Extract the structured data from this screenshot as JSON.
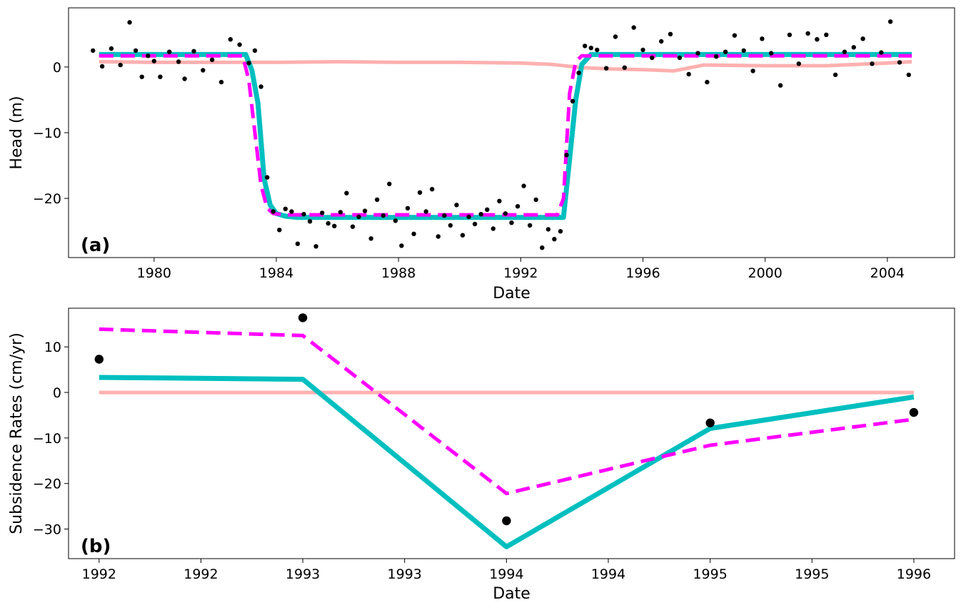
{
  "colors": {
    "pink": "#ffb0b0",
    "cyan": "#00bfbf",
    "magenta": "#ff00ff",
    "black": "#000000"
  },
  "chart_data": [
    {
      "type": "line",
      "panel_label": "(a)",
      "xlabel": "Date",
      "ylabel": "Head (m)",
      "xlim": [
        1977.2,
        2006.2
      ],
      "ylim": [
        -29,
        9
      ],
      "xticks": [
        1980,
        1984,
        1988,
        1992,
        1996,
        2000,
        2004
      ],
      "xtick_labels": [
        "1980",
        "1984",
        "1988",
        "1992",
        "1996",
        "2000",
        "2004"
      ],
      "yticks": [
        0,
        -10,
        -20
      ],
      "ytick_labels": [
        "0",
        "−10",
        "−20"
      ],
      "grid": false,
      "series": [
        {
          "style": "solid-pink",
          "x": [
            1978.2,
            1980,
            1982,
            1984,
            1986,
            1988,
            1990,
            1992,
            1993,
            1994,
            1995,
            1996,
            1997,
            1998,
            2000,
            2002,
            2004,
            2004.8
          ],
          "y": [
            0.8,
            0.7,
            0.7,
            0.7,
            0.8,
            0.7,
            0.7,
            0.6,
            0.4,
            -0.1,
            -0.3,
            -0.4,
            -0.6,
            0.3,
            0.2,
            0.2,
            0.6,
            0.8
          ]
        },
        {
          "style": "solid-cyan",
          "x": [
            1978.2,
            1983.0,
            1983.2,
            1983.4,
            1983.6,
            1983.8,
            1984.0,
            1984.3,
            1984.7,
            1993.4,
            1993.6,
            1993.8,
            1994.0,
            1994.3,
            2004.8
          ],
          "y": [
            1.9,
            1.9,
            -0.5,
            -5.5,
            -17,
            -21,
            -22.3,
            -22.7,
            -22.9,
            -22.9,
            -14,
            -5,
            0.4,
            1.9,
            1.9
          ]
        },
        {
          "style": "dashed-magenta",
          "x": [
            1978.2,
            1982.9,
            1983.1,
            1983.3,
            1983.5,
            1983.7,
            1983.9,
            1984.3,
            1984.8,
            1993.2,
            1993.4,
            1993.5,
            1993.6,
            1993.8,
            1994.0,
            2004.8
          ],
          "y": [
            1.7,
            1.7,
            -2,
            -10,
            -18,
            -21.5,
            -22.3,
            -22.5,
            -22.5,
            -22.5,
            -20,
            -12,
            -4,
            0.8,
            1.7,
            1.7
          ]
        }
      ],
      "scatter": {
        "x": [
          1978.0,
          1978.3,
          1978.6,
          1978.9,
          1979.2,
          1979.4,
          1979.6,
          1979.8,
          1980.0,
          1980.2,
          1980.5,
          1980.8,
          1981.0,
          1981.3,
          1981.6,
          1981.9,
          1982.2,
          1982.5,
          1982.8,
          1983.1,
          1983.3,
          1983.5,
          1983.7,
          1983.9,
          1984.1,
          1984.3,
          1984.5,
          1984.7,
          1984.9,
          1985.1,
          1985.3,
          1985.5,
          1985.7,
          1985.9,
          1986.1,
          1986.3,
          1986.5,
          1986.7,
          1986.9,
          1987.1,
          1987.3,
          1987.5,
          1987.7,
          1987.9,
          1988.1,
          1988.3,
          1988.5,
          1988.7,
          1988.9,
          1989.1,
          1989.3,
          1989.5,
          1989.7,
          1989.9,
          1990.1,
          1990.3,
          1990.5,
          1990.7,
          1990.9,
          1991.1,
          1991.3,
          1991.5,
          1991.7,
          1991.9,
          1992.1,
          1992.3,
          1992.5,
          1992.7,
          1992.9,
          1993.1,
          1993.3,
          1993.5,
          1993.7,
          1993.9,
          1994.1,
          1994.3,
          1994.5,
          1994.8,
          1995.1,
          1995.4,
          1995.7,
          1996.0,
          1996.3,
          1996.6,
          1996.9,
          1997.2,
          1997.5,
          1997.8,
          1998.1,
          1998.4,
          1998.7,
          1999.0,
          1999.3,
          1999.6,
          1999.9,
          2000.2,
          2000.5,
          2000.8,
          2001.1,
          2001.4,
          2001.7,
          2002.0,
          2002.3,
          2002.6,
          2002.9,
          2003.2,
          2003.5,
          2003.8,
          2004.1,
          2004.4,
          2004.7
        ],
        "y": [
          2.5,
          0.1,
          2.8,
          0.3,
          6.8,
          2.5,
          -1.5,
          1.7,
          0.9,
          -1.5,
          2.3,
          0.8,
          -1.8,
          2.4,
          -0.5,
          1.1,
          -2.3,
          4.2,
          3.4,
          0.6,
          2.5,
          -3.0,
          -16.8,
          -22.0,
          -24.8,
          -21.6,
          -22.0,
          -26.9,
          -22.4,
          -23.5,
          -27.3,
          -22.2,
          -23.8,
          -24.2,
          -22.1,
          -19.2,
          -24.3,
          -22.8,
          -21.9,
          -26.1,
          -20.2,
          -22.6,
          -17.8,
          -23.4,
          -27.2,
          -21.5,
          -25.4,
          -19.1,
          -22.0,
          -18.6,
          -25.8,
          -22.6,
          -24.1,
          -21.0,
          -25.6,
          -22.8,
          -23.9,
          -22.4,
          -21.7,
          -24.6,
          -20.4,
          -22.3,
          -23.7,
          -21.2,
          -18.1,
          -24.1,
          -20.2,
          -27.5,
          -24.7,
          -26.2,
          -25.0,
          -13.4,
          -5.2,
          -0.9,
          3.2,
          2.9,
          2.6,
          -0.2,
          4.6,
          -0.1,
          6.0,
          2.6,
          1.4,
          3.9,
          5.0,
          1.4,
          -1.1,
          2.1,
          -2.3,
          1.6,
          2.3,
          4.8,
          2.5,
          -0.6,
          4.3,
          2.1,
          -2.8,
          4.9,
          0.5,
          5.1,
          4.2,
          4.9,
          -1.2,
          2.3,
          3.0,
          4.3,
          0.5,
          2.2,
          6.9,
          0.7,
          -1.2
        ]
      }
    },
    {
      "type": "line",
      "panel_label": "(b)",
      "xlabel": "Date",
      "ylabel": "Subsidence Rates (cm/yr)",
      "xlim": [
        1991.85,
        1996.2
      ],
      "ylim": [
        -36.5,
        18.5
      ],
      "xticks": [
        1992.0,
        1992.5,
        1993.0,
        1993.5,
        1994.0,
        1994.5,
        1995.0,
        1995.5,
        1996.0
      ],
      "xtick_labels": [
        "1992",
        "1992",
        "1993",
        "1993",
        "1994",
        "1994",
        "1995",
        "1995",
        "1996"
      ],
      "yticks": [
        10,
        0,
        -10,
        -20,
        -30
      ],
      "ytick_labels": [
        "10",
        "0",
        "−10",
        "−20",
        "−30"
      ],
      "grid": false,
      "series": [
        {
          "style": "solid-pink",
          "x": [
            1992.0,
            1993.0,
            1994.0,
            1995.0,
            1996.0
          ],
          "y": [
            0,
            0,
            0,
            0,
            0
          ]
        },
        {
          "style": "solid-cyan",
          "x": [
            1992.0,
            1993.0,
            1994.0,
            1995.0,
            1996.0
          ],
          "y": [
            3.3,
            2.9,
            -33.9,
            -7.9,
            -1.0
          ]
        },
        {
          "style": "dashed-magenta",
          "x": [
            1992.0,
            1993.0,
            1994.0,
            1995.0,
            1996.0
          ],
          "y": [
            13.9,
            12.5,
            -22.2,
            -11.6,
            -5.9
          ]
        }
      ],
      "scatter": {
        "x": [
          1992.0,
          1993.0,
          1994.0,
          1995.0,
          1996.0
        ],
        "y": [
          7.3,
          16.4,
          -28.2,
          -6.7,
          -4.4
        ]
      }
    }
  ]
}
